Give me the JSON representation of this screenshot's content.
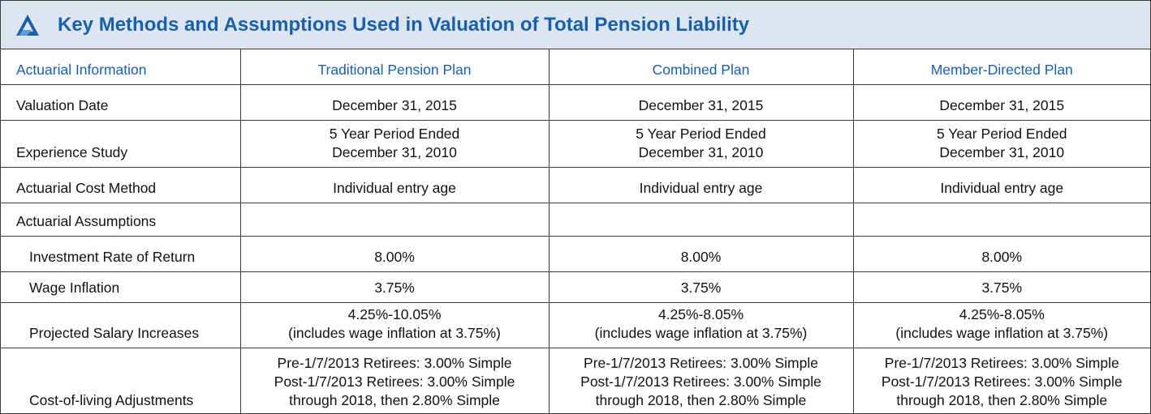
{
  "header": {
    "title": "Key Methods and Assumptions Used in Valuation of Total Pension Liability"
  },
  "table": {
    "columns": [
      "Actuarial Information",
      "Traditional Pension Plan",
      "Combined Plan",
      "Member-Directed Plan"
    ],
    "rows": [
      {
        "label": "Valuation Date",
        "cells": [
          [
            "December 31, 2015"
          ],
          [
            "December 31, 2015"
          ],
          [
            "December 31, 2015"
          ]
        ]
      },
      {
        "label": "Experience Study",
        "cells": [
          [
            "5 Year Period Ended",
            "December 31, 2010"
          ],
          [
            "5 Year Period Ended",
            "December 31, 2010"
          ],
          [
            "5 Year Period Ended",
            "December 31, 2010"
          ]
        ]
      },
      {
        "label": "Actuarial Cost Method",
        "cells": [
          [
            "Individual entry age"
          ],
          [
            "Individual entry age"
          ],
          [
            "Individual entry age"
          ]
        ]
      },
      {
        "label": "Actuarial Assumptions",
        "rows": [
          {
            "label": "Investment Rate of Return",
            "cells": [
              [
                "8.00%"
              ],
              [
                "8.00%"
              ],
              [
                "8.00%"
              ]
            ]
          },
          {
            "label": "Wage Inflation",
            "cells": [
              [
                "3.75%"
              ],
              [
                "3.75%"
              ],
              [
                "3.75%"
              ]
            ]
          },
          {
            "label": "Projected Salary Increases",
            "cells": [
              [
                "4.25%-10.05%",
                "(includes wage inflation at 3.75%)"
              ],
              [
                "4.25%-8.05%",
                "(includes wage inflation at 3.75%)"
              ],
              [
                "4.25%-8.05%",
                "(includes wage inflation at 3.75%)"
              ]
            ]
          },
          {
            "label": "Cost-of-living Adjustments",
            "cells": [
              [
                "Pre-1/7/2013 Retirees: 3.00% Simple",
                "Post-1/7/2013 Retirees: 3.00% Simple",
                "through 2018, then 2.80% Simple"
              ],
              [
                "Pre-1/7/2013 Retirees: 3.00% Simple",
                "Post-1/7/2013 Retirees: 3.00% Simple",
                "through 2018, then 2.80% Simple"
              ],
              [
                "Pre-1/7/2013 Retirees: 3.00% Simple",
                "Post-1/7/2013 Retirees: 3.00% Simple",
                "through 2018, then 2.80% Simple"
              ]
            ]
          }
        ]
      }
    ]
  }
}
